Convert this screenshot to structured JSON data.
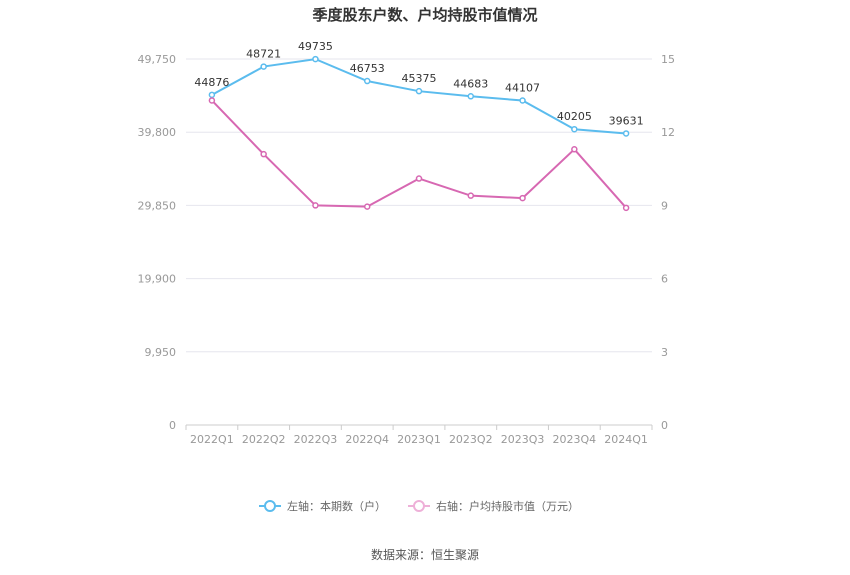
{
  "title": "季度股东户数、户均持股市值情况",
  "source": "数据来源：恒生聚源",
  "colors": {
    "left_series": "#5bbcee",
    "right_series": "#d768b2",
    "grid": "#e6e6ee",
    "axis_text": "#999999"
  },
  "legend": {
    "left": "左轴：本期数（户）",
    "right": "右轴：户均持股市值（万元）"
  },
  "chart_data": {
    "type": "line",
    "categories": [
      "2022Q1",
      "2022Q2",
      "2022Q3",
      "2022Q4",
      "2023Q1",
      "2023Q2",
      "2023Q3",
      "2023Q4",
      "2024Q1"
    ],
    "left_axis": {
      "ticks": [
        "0",
        "9,950",
        "19,900",
        "29,850",
        "39,800",
        "49,750"
      ],
      "ylim": [
        0,
        49750
      ]
    },
    "right_axis": {
      "ticks": [
        "0",
        "3",
        "6",
        "9",
        "12",
        "15"
      ],
      "ylim": [
        0,
        15
      ]
    },
    "series": [
      {
        "name": "本期数（户）",
        "axis": "left",
        "values": [
          44876,
          48721,
          49735,
          46753,
          45375,
          44683,
          44107,
          40205,
          39631
        ],
        "labels": [
          "44876",
          "48721",
          "49735",
          "46753",
          "45375",
          "44683",
          "44107",
          "40205",
          "39631"
        ]
      },
      {
        "name": "户均持股市值（万元）",
        "axis": "right",
        "values": [
          13.3,
          11.1,
          9.0,
          8.95,
          10.1,
          9.4,
          9.3,
          11.3,
          8.9
        ]
      }
    ]
  }
}
